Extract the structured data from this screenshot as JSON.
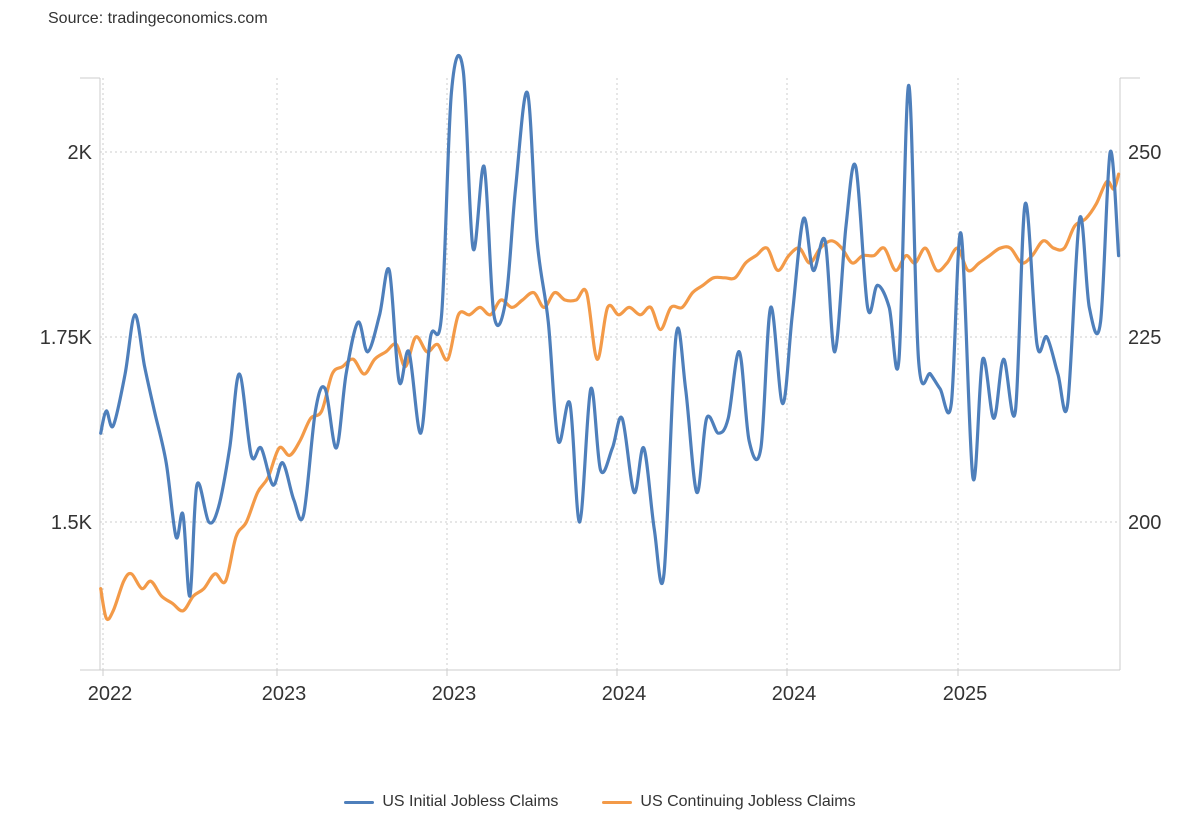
{
  "source_text": "Source: tradingeconomics.com",
  "colors": {
    "initial": "#4e7fbb",
    "continuing": "#f39a48",
    "grid": "#cccccc",
    "axis": "#cccccc"
  },
  "chart_data": {
    "type": "line",
    "title": "",
    "xlabel": "",
    "ylabel": "",
    "x_tick_labels": [
      "2022",
      "2023",
      "2023",
      "2024",
      "2024",
      "2025"
    ],
    "y_left_ticks": [
      {
        "value": 1500,
        "label": "1.5K"
      },
      {
        "value": 1750,
        "label": "1.75K"
      },
      {
        "value": 2000,
        "label": "2K"
      }
    ],
    "y_right_ticks": [
      {
        "value": 200,
        "label": "200"
      },
      {
        "value": 225,
        "label": "225"
      },
      {
        "value": 250,
        "label": "250"
      }
    ],
    "grid": true,
    "legend_position": "bottom-center",
    "x_range": [
      "2021-12-27",
      "2025-12-29"
    ],
    "series": [
      {
        "name": "US Continuing Jobless Claims",
        "axis": "left",
        "color": "#f39a48",
        "x": [
          "2021-12-28",
          "2022-01-05",
          "2022-01-15",
          "2022-01-30",
          "2022-02-10",
          "2022-02-25",
          "2022-03-10",
          "2022-03-25",
          "2022-04-10",
          "2022-04-25",
          "2022-05-10",
          "2022-05-25",
          "2022-06-10",
          "2022-06-25",
          "2022-07-10",
          "2022-07-25",
          "2022-08-10",
          "2022-08-25",
          "2022-09-10",
          "2022-09-25",
          "2022-10-10",
          "2022-10-25",
          "2022-11-10",
          "2022-11-25",
          "2022-12-10",
          "2022-12-25",
          "2023-01-10",
          "2023-01-25",
          "2023-02-10",
          "2023-02-25",
          "2023-03-10",
          "2023-03-25",
          "2023-04-10",
          "2023-04-25",
          "2023-05-10",
          "2023-05-25",
          "2023-06-10",
          "2023-06-25",
          "2023-07-10",
          "2023-07-25",
          "2023-08-10",
          "2023-08-25",
          "2023-09-10",
          "2023-09-25",
          "2023-10-10",
          "2023-10-25",
          "2023-11-10",
          "2023-11-25",
          "2023-12-10",
          "2023-12-25",
          "2024-01-10",
          "2024-01-25",
          "2024-02-10",
          "2024-02-25",
          "2024-03-10",
          "2024-03-25",
          "2024-04-10",
          "2024-04-25",
          "2024-05-10",
          "2024-05-25",
          "2024-06-10",
          "2024-06-25",
          "2024-07-10",
          "2024-07-25",
          "2024-08-10",
          "2024-08-25",
          "2024-09-10",
          "2024-09-25",
          "2024-10-10",
          "2024-10-25",
          "2024-11-10",
          "2024-11-25",
          "2024-12-10",
          "2024-12-25",
          "2025-01-10",
          "2025-01-25",
          "2025-02-10",
          "2025-02-25",
          "2025-03-10",
          "2025-03-25",
          "2025-04-10",
          "2025-04-25",
          "2025-05-10",
          "2025-05-25",
          "2025-06-10",
          "2025-06-25",
          "2025-07-10",
          "2025-07-25",
          "2025-08-10",
          "2025-08-25",
          "2025-09-10",
          "2025-09-25",
          "2025-10-10",
          "2025-10-25",
          "2025-11-10",
          "2025-11-25",
          "2025-12-10",
          "2025-12-20",
          "2025-12-27"
        ],
        "values": [
          1410,
          1370,
          1380,
          1420,
          1430,
          1410,
          1420,
          1400,
          1390,
          1380,
          1400,
          1410,
          1430,
          1420,
          1480,
          1500,
          1540,
          1560,
          1600,
          1590,
          1610,
          1640,
          1650,
          1700,
          1710,
          1720,
          1700,
          1720,
          1730,
          1740,
          1710,
          1750,
          1730,
          1740,
          1720,
          1780,
          1780,
          1790,
          1780,
          1800,
          1790,
          1800,
          1810,
          1790,
          1810,
          1800,
          1800,
          1810,
          1720,
          1790,
          1780,
          1790,
          1780,
          1790,
          1760,
          1790,
          1790,
          1810,
          1820,
          1830,
          1830,
          1830,
          1850,
          1860,
          1870,
          1840,
          1860,
          1870,
          1850,
          1870,
          1880,
          1870,
          1850,
          1860,
          1860,
          1870,
          1840,
          1860,
          1850,
          1870,
          1840,
          1850,
          1870,
          1840,
          1850,
          1860,
          1870,
          1870,
          1850,
          1860,
          1880,
          1870,
          1870,
          1900,
          1910,
          1930,
          1960,
          1950,
          1970
        ]
      },
      {
        "name": "US Initial Jobless Claims",
        "axis": "left",
        "color": "#4e7fbb",
        "x": [
          "2021-12-28",
          "2022-01-05",
          "2022-01-15",
          "2022-02-01",
          "2022-02-15",
          "2022-03-01",
          "2022-03-15",
          "2022-04-01",
          "2022-04-15",
          "2022-04-25",
          "2022-05-05",
          "2022-05-15",
          "2022-06-01",
          "2022-06-15",
          "2022-07-01",
          "2022-07-15",
          "2022-08-01",
          "2022-08-15",
          "2022-09-01",
          "2022-09-15",
          "2022-10-01",
          "2022-10-15",
          "2022-11-01",
          "2022-11-15",
          "2022-12-01",
          "2022-12-15",
          "2023-01-01",
          "2023-01-15",
          "2023-02-01",
          "2023-02-15",
          "2023-03-01",
          "2023-03-15",
          "2023-04-01",
          "2023-04-15",
          "2023-05-01",
          "2023-05-15",
          "2023-06-01",
          "2023-06-15",
          "2023-07-01",
          "2023-07-15",
          "2023-08-01",
          "2023-08-15",
          "2023-09-01",
          "2023-09-15",
          "2023-10-01",
          "2023-10-15",
          "2023-11-01",
          "2023-11-15",
          "2023-12-01",
          "2023-12-15",
          "2024-01-01",
          "2024-01-15",
          "2024-02-01",
          "2024-02-15",
          "2024-03-01",
          "2024-03-15",
          "2024-04-01",
          "2024-04-15",
          "2024-05-01",
          "2024-05-15",
          "2024-06-01",
          "2024-06-15",
          "2024-07-01",
          "2024-07-15",
          "2024-08-01",
          "2024-08-15",
          "2024-09-01",
          "2024-09-15",
          "2024-10-01",
          "2024-10-15",
          "2024-11-01",
          "2024-11-15",
          "2024-12-01",
          "2024-12-15",
          "2025-01-01",
          "2025-01-15",
          "2025-02-01",
          "2025-02-15",
          "2025-03-01",
          "2025-03-15",
          "2025-04-01",
          "2025-04-15",
          "2025-05-01",
          "2025-05-15",
          "2025-06-01",
          "2025-06-15",
          "2025-07-01",
          "2025-07-15",
          "2025-08-01",
          "2025-08-15",
          "2025-09-01",
          "2025-09-15",
          "2025-10-01",
          "2025-10-15",
          "2025-11-01",
          "2025-11-15",
          "2025-12-01",
          "2025-12-15",
          "2025-12-27"
        ],
        "values": [
          1620,
          1650,
          1630,
          1700,
          1780,
          1710,
          1650,
          1580,
          1480,
          1510,
          1400,
          1550,
          1500,
          1520,
          1600,
          1700,
          1590,
          1600,
          1550,
          1580,
          1530,
          1510,
          1650,
          1680,
          1600,
          1700,
          1770,
          1730,
          1780,
          1840,
          1690,
          1730,
          1620,
          1750,
          1780,
          2080,
          2110,
          1870,
          1980,
          1780,
          1800,
          1950,
          2080,
          1880,
          1770,
          1610,
          1660,
          1500,
          1680,
          1570,
          1600,
          1640,
          1540,
          1600,
          1490,
          1430,
          1750,
          1680,
          1540,
          1640,
          1620,
          1640,
          1730,
          1610,
          1600,
          1790,
          1660,
          1780,
          1910,
          1840,
          1880,
          1730,
          1900,
          1980,
          1790,
          1820,
          1790,
          1720,
          2090,
          1720,
          1700,
          1680,
          1660,
          1890,
          1560,
          1720,
          1640,
          1720,
          1650,
          1930,
          1740,
          1750,
          1700,
          1660,
          1910,
          1790,
          1770,
          2000,
          1860
        ]
      }
    ]
  },
  "legend": [
    {
      "label": "US Initial Jobless Claims",
      "color": "#4e7fbb"
    },
    {
      "label": "US Continuing Jobless Claims",
      "color": "#f39a48"
    }
  ]
}
